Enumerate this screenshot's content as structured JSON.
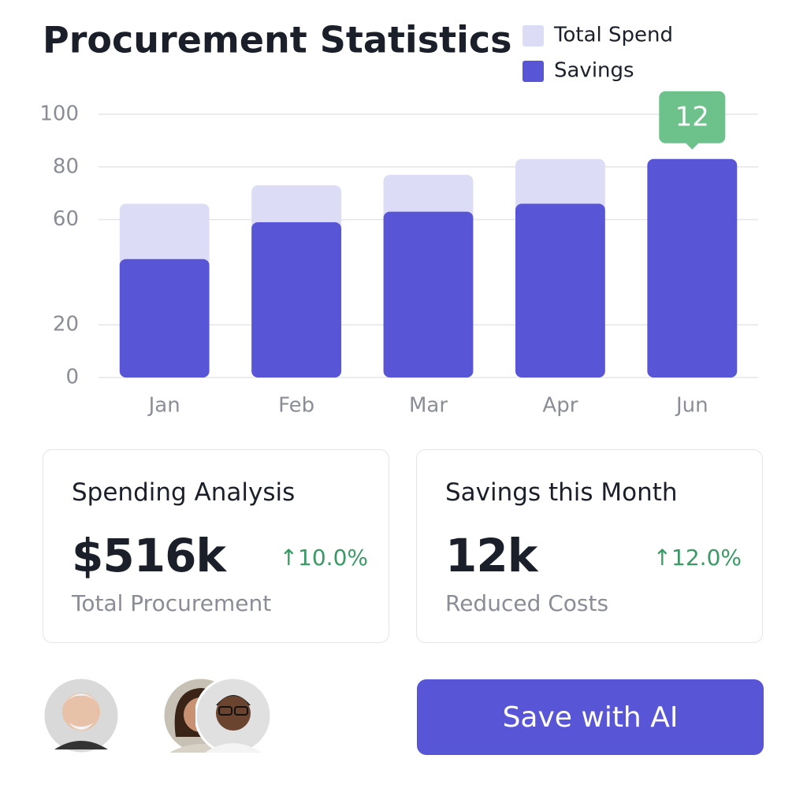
{
  "chart_data": {
    "type": "bar",
    "title": "Procurement Statistics",
    "categories": [
      "Jan",
      "Feb",
      "Mar",
      "Apr",
      "Jun"
    ],
    "series": [
      {
        "name": "Total Spend",
        "color": "#dcdcf7",
        "values": [
          66,
          73,
          77,
          83,
          83
        ]
      },
      {
        "name": "Savings",
        "color": "#5856d6",
        "values": [
          45,
          59,
          63,
          66,
          83
        ]
      }
    ],
    "ylim": [
      0,
      100
    ],
    "yticks": [
      0,
      20,
      60,
      80,
      100
    ],
    "grid": true,
    "annotation": "12",
    "annotation_color": "#6cc28a"
  },
  "cards": [
    {
      "title": "Spending Analysis",
      "value": "$516k",
      "change": "↑10.0%",
      "caption": "Total Procurement"
    },
    {
      "title": "Savings this Month",
      "value": "12k",
      "change": "↑12.0%",
      "caption": "Reduced Costs"
    }
  ],
  "button": "Save with AI"
}
